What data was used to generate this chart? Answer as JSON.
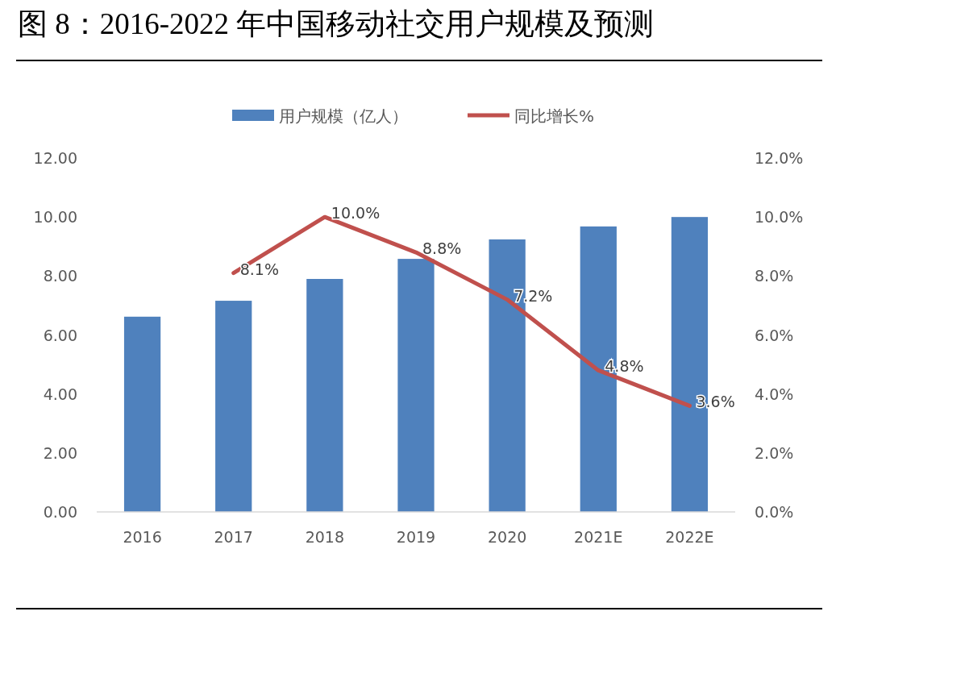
{
  "chart_data": {
    "type": "bar",
    "title": "图 8：2016-2022 年中国移动社交用户规模及预测",
    "categories": [
      "2016",
      "2017",
      "2018",
      "2019",
      "2020",
      "2021E",
      "2022E"
    ],
    "series": [
      {
        "name": "用户规模（亿人）",
        "color": "#4f81bd",
        "values": [
          6.62,
          7.16,
          7.9,
          8.58,
          9.24,
          9.68,
          10.0
        ]
      },
      {
        "name": "同比增长%",
        "type": "line",
        "axis": "y2",
        "color": "#c0504d",
        "values": [
          null,
          8.1,
          10.0,
          8.8,
          7.2,
          4.8,
          3.6
        ],
        "value_labels": [
          null,
          "8.1%",
          "10.0%",
          "8.8%",
          "7.2%",
          "4.8%",
          "3.6%"
        ]
      }
    ],
    "ylim": [
      0,
      12
    ],
    "yticks": [
      {
        "value": 0,
        "label": "0.00"
      },
      {
        "value": 2,
        "label": "2.00"
      },
      {
        "value": 4,
        "label": "4.00"
      },
      {
        "value": 6,
        "label": "6.00"
      },
      {
        "value": 8,
        "label": "8.00"
      },
      {
        "value": 10,
        "label": "10.00"
      },
      {
        "value": 12,
        "label": "12.00"
      }
    ],
    "y2lim": [
      0,
      12
    ],
    "y2ticks": [
      {
        "value": 0,
        "label": "0.0%"
      },
      {
        "value": 2,
        "label": "2.0%"
      },
      {
        "value": 4,
        "label": "4.0%"
      },
      {
        "value": 6,
        "label": "6.0%"
      },
      {
        "value": 8,
        "label": "8.0%"
      },
      {
        "value": 10,
        "label": "10.0%"
      },
      {
        "value": 12,
        "label": "12.0%"
      }
    ],
    "legend": "top",
    "grid": false,
    "marker": "none",
    "line_style": "solid"
  }
}
